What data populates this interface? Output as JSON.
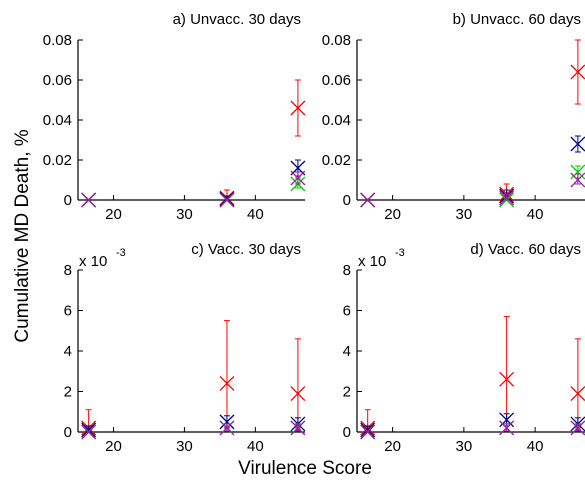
{
  "chart_data": {
    "type": "scatter",
    "xlabel": "Virulence Score",
    "ylabel": "Cumulative MD Death, %",
    "series_colors": [
      "#ff0000",
      "#00008b",
      "#00cc00",
      "#a020a0"
    ],
    "panels": [
      {
        "title": "a) Unvacc. 30 days",
        "xlim": [
          15,
          47
        ],
        "ylim": [
          0,
          0.08
        ],
        "xticks": [
          "20",
          "30",
          "40"
        ],
        "yticks": [
          "0",
          "0.02",
          "0.04",
          "0.06",
          "0.08"
        ],
        "multiplier": null,
        "series": [
          {
            "points": [
              {
                "x": 16.5,
                "y": 0,
                "lo": 0,
                "hi": 0
              },
              {
                "x": 36,
                "y": 0.001,
                "lo": 0,
                "hi": 0.005
              },
              {
                "x": 46,
                "y": 0.046,
                "lo": 0.032,
                "hi": 0.06
              }
            ]
          },
          {
            "points": [
              {
                "x": 16.5,
                "y": 0,
                "lo": 0,
                "hi": 0
              },
              {
                "x": 36,
                "y": 0.0005,
                "lo": 0,
                "hi": 0.002
              },
              {
                "x": 46,
                "y": 0.016,
                "lo": 0.012,
                "hi": 0.02
              }
            ]
          },
          {
            "points": [
              {
                "x": 16.5,
                "y": 0,
                "lo": 0,
                "hi": 0
              },
              {
                "x": 36,
                "y": 0,
                "lo": 0,
                "hi": 0
              },
              {
                "x": 46,
                "y": 0.008,
                "lo": 0.006,
                "hi": 0.011
              }
            ]
          },
          {
            "points": [
              {
                "x": 16.5,
                "y": 0,
                "lo": 0,
                "hi": 0
              },
              {
                "x": 36,
                "y": 0,
                "lo": 0,
                "hi": 0
              },
              {
                "x": 46,
                "y": 0.011,
                "lo": 0.008,
                "hi": 0.014
              }
            ]
          }
        ]
      },
      {
        "title": "b) Unvacc. 60 days",
        "xlim": [
          15,
          47
        ],
        "ylim": [
          0,
          0.08
        ],
        "xticks": [
          "20",
          "30",
          "40"
        ],
        "yticks": [
          "0",
          "0.02",
          "0.04",
          "0.06",
          "0.08"
        ],
        "multiplier": null,
        "series": [
          {
            "points": [
              {
                "x": 16.5,
                "y": 0,
                "lo": 0,
                "hi": 0
              },
              {
                "x": 36,
                "y": 0.003,
                "lo": 0,
                "hi": 0.008
              },
              {
                "x": 46,
                "y": 0.064,
                "lo": 0.048,
                "hi": 0.08
              }
            ]
          },
          {
            "points": [
              {
                "x": 16.5,
                "y": 0,
                "lo": 0,
                "hi": 0
              },
              {
                "x": 36,
                "y": 0.002,
                "lo": 0,
                "hi": 0.005
              },
              {
                "x": 46,
                "y": 0.028,
                "lo": 0.024,
                "hi": 0.032
              }
            ]
          },
          {
            "points": [
              {
                "x": 16.5,
                "y": 0,
                "lo": 0,
                "hi": 0
              },
              {
                "x": 36,
                "y": 0,
                "lo": 0,
                "hi": 0
              },
              {
                "x": 46,
                "y": 0.014,
                "lo": 0.011,
                "hi": 0.017
              }
            ]
          },
          {
            "points": [
              {
                "x": 16.5,
                "y": 0,
                "lo": 0,
                "hi": 0
              },
              {
                "x": 36,
                "y": 0.001,
                "lo": 0,
                "hi": 0.003
              },
              {
                "x": 46,
                "y": 0.01,
                "lo": 0.008,
                "hi": 0.013
              }
            ]
          }
        ]
      },
      {
        "title": "c) Vacc. 30 days",
        "xlim": [
          15,
          47
        ],
        "ylim": [
          0,
          8
        ],
        "xticks": [
          "20",
          "30",
          "40"
        ],
        "yticks": [
          "0",
          "2",
          "4",
          "6",
          "8"
        ],
        "multiplier": {
          "base": "x 10",
          "exp": "-3"
        },
        "series": [
          {
            "points": [
              {
                "x": 16.5,
                "y": 0.2,
                "lo": 0,
                "hi": 1.1
              },
              {
                "x": 36,
                "y": 2.4,
                "lo": 0.3,
                "hi": 5.5
              },
              {
                "x": 46,
                "y": 1.9,
                "lo": 0.2,
                "hi": 4.6
              }
            ]
          },
          {
            "points": [
              {
                "x": 16.5,
                "y": 0.1,
                "lo": 0,
                "hi": 0.3
              },
              {
                "x": 36,
                "y": 0.5,
                "lo": 0.2,
                "hi": 0.8
              },
              {
                "x": 46,
                "y": 0.4,
                "lo": 0.1,
                "hi": 0.7
              }
            ]
          },
          {
            "points": [
              {
                "x": 16.5,
                "y": 0,
                "lo": 0,
                "hi": 0
              },
              {
                "x": 36,
                "y": 0.2,
                "lo": 0.05,
                "hi": 0.4
              },
              {
                "x": 46,
                "y": 0.2,
                "lo": 0.05,
                "hi": 0.4
              }
            ]
          },
          {
            "points": [
              {
                "x": 16.5,
                "y": 0,
                "lo": 0,
                "hi": 0
              },
              {
                "x": 36,
                "y": 0.2,
                "lo": 0.05,
                "hi": 0.4
              },
              {
                "x": 46,
                "y": 0.2,
                "lo": 0.05,
                "hi": 0.4
              }
            ]
          }
        ]
      },
      {
        "title": "d) Vacc. 60 days",
        "xlim": [
          15,
          47
        ],
        "ylim": [
          0,
          8
        ],
        "xticks": [
          "20",
          "30",
          "40"
        ],
        "yticks": [
          "0",
          "2",
          "4",
          "6",
          "8"
        ],
        "multiplier": {
          "base": "x 10",
          "exp": "-3"
        },
        "series": [
          {
            "points": [
              {
                "x": 16.5,
                "y": 0.2,
                "lo": 0,
                "hi": 1.1
              },
              {
                "x": 36,
                "y": 2.6,
                "lo": 0.3,
                "hi": 5.7
              },
              {
                "x": 46,
                "y": 1.9,
                "lo": 0.2,
                "hi": 4.6
              }
            ]
          },
          {
            "points": [
              {
                "x": 16.5,
                "y": 0.1,
                "lo": 0,
                "hi": 0.3
              },
              {
                "x": 36,
                "y": 0.6,
                "lo": 0.3,
                "hi": 0.9
              },
              {
                "x": 46,
                "y": 0.4,
                "lo": 0.1,
                "hi": 0.7
              }
            ]
          },
          {
            "points": [
              {
                "x": 16.5,
                "y": 0,
                "lo": 0,
                "hi": 0
              },
              {
                "x": 36,
                "y": 0.2,
                "lo": 0.05,
                "hi": 0.4
              },
              {
                "x": 46,
                "y": 0.2,
                "lo": 0.05,
                "hi": 0.4
              }
            ]
          },
          {
            "points": [
              {
                "x": 16.5,
                "y": 0,
                "lo": 0,
                "hi": 0
              },
              {
                "x": 36,
                "y": 0.2,
                "lo": 0.05,
                "hi": 0.4
              },
              {
                "x": 46,
                "y": 0.2,
                "lo": 0.05,
                "hi": 0.4
              }
            ]
          }
        ]
      }
    ]
  }
}
